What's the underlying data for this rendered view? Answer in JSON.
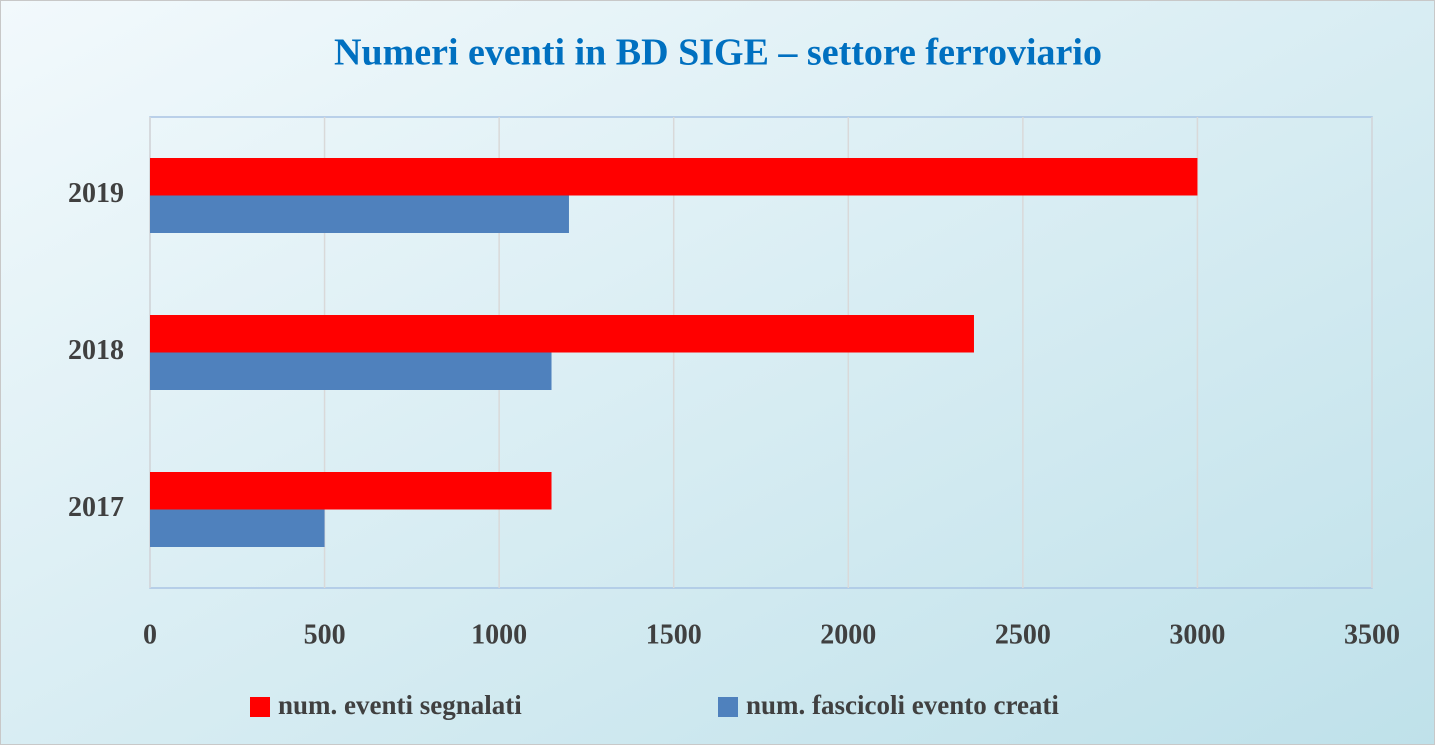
{
  "chart_data": {
    "type": "hbar",
    "title": "Numeri eventi in BD SIGE – settore ferroviario",
    "categories": [
      "2017",
      "2018",
      "2019"
    ],
    "series": [
      {
        "name": "num. eventi segnalati",
        "color": "#ff0000",
        "values": [
          1150,
          2360,
          3000
        ]
      },
      {
        "name": "num. fascicoli evento creati",
        "color": "#4f81bd",
        "values": [
          500,
          1150,
          1200
        ]
      }
    ],
    "xlim": [
      0,
      3500
    ],
    "xticks": [
      0,
      500,
      1000,
      1500,
      2000,
      2500,
      3000,
      3500
    ],
    "grid": true,
    "legend": "bottom"
  }
}
